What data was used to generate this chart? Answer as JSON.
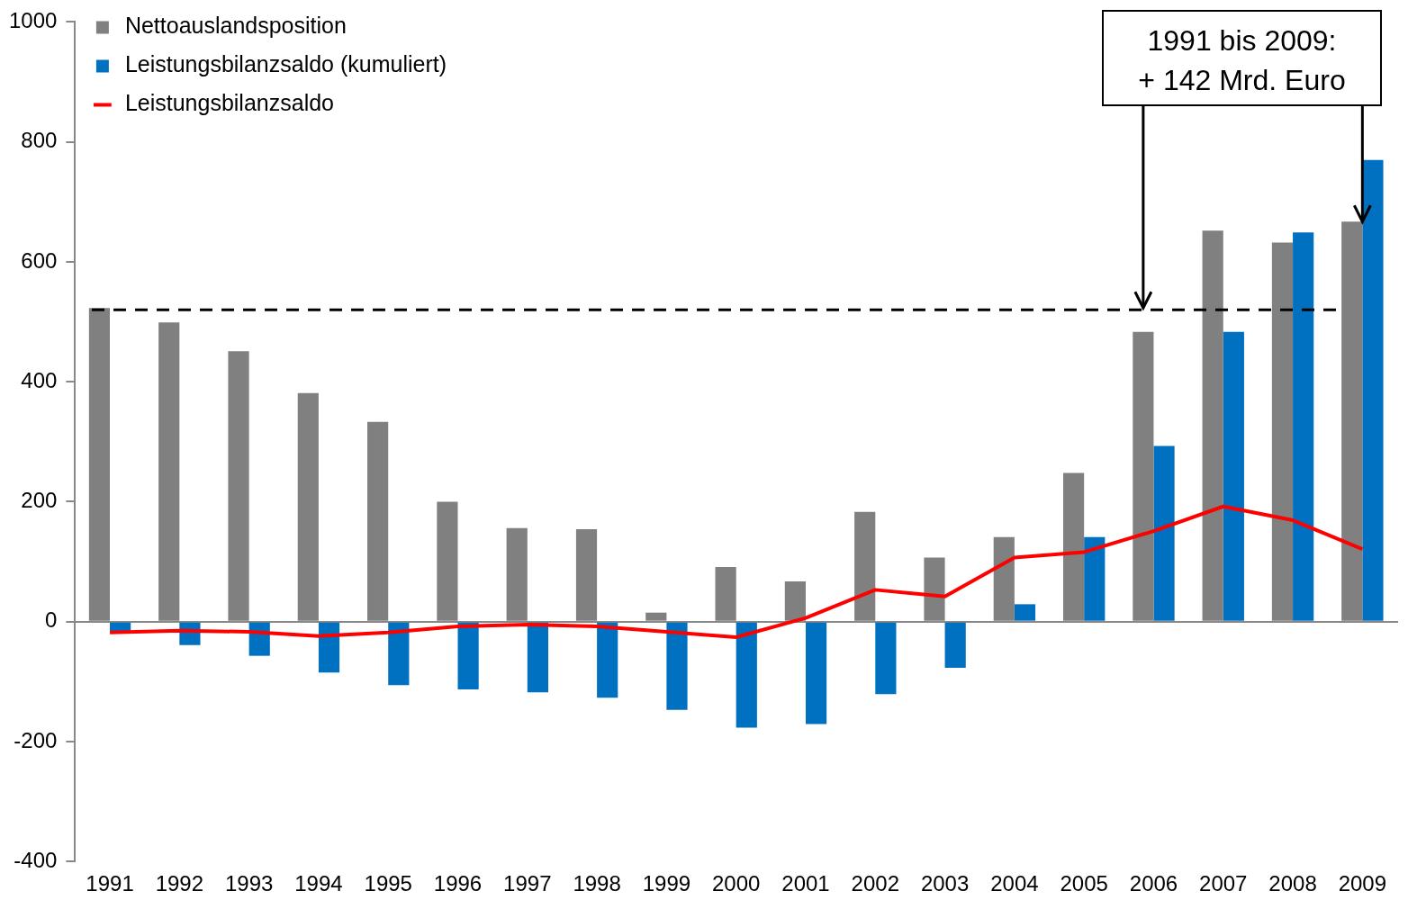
{
  "chart_data": {
    "type": "bar",
    "categories": [
      "1991",
      "1992",
      "1993",
      "1994",
      "1995",
      "1996",
      "1997",
      "1998",
      "1999",
      "2000",
      "2001",
      "2002",
      "2003",
      "2004",
      "2005",
      "2006",
      "2007",
      "2008",
      "2009"
    ],
    "series": [
      {
        "name": "Nettoauslandsposition",
        "color": "#808080",
        "values": [
          523,
          499,
          451,
          381,
          333,
          200,
          156,
          154,
          15,
          91,
          67,
          183,
          107,
          141,
          248,
          483,
          652,
          632,
          667
        ]
      },
      {
        "name": "Leistungsbilanzsaldo (kumuliert)",
        "color": "#0070c0",
        "values": [
          -17,
          -39,
          -57,
          -85,
          -106,
          -113,
          -118,
          -127,
          -147,
          -177,
          -171,
          -121,
          -77,
          29,
          141,
          293,
          483,
          649,
          770
        ]
      },
      {
        "name": "Leistungsbilanzsaldo",
        "type": "line",
        "color": "#ff0000",
        "values": [
          -18,
          -15,
          -17,
          -24,
          -18,
          -8,
          -5,
          -8,
          -17,
          -26,
          6,
          53,
          42,
          107,
          116,
          151,
          192,
          169,
          121
        ]
      }
    ],
    "ref_lines": [
      {
        "axis": "y",
        "value": 520,
        "color": "#000000",
        "line_style": "dashed"
      }
    ],
    "ylim": [
      -400,
      1000
    ],
    "yticks": [
      -400,
      -200,
      0,
      200,
      400,
      600,
      800,
      1000
    ],
    "legend": "top left",
    "marker": "none",
    "annotations": [
      {
        "text": "1991 bis 2009:\n+ 142 Mrd. Euro",
        "x": "2009",
        "y": 667
      }
    ]
  }
}
